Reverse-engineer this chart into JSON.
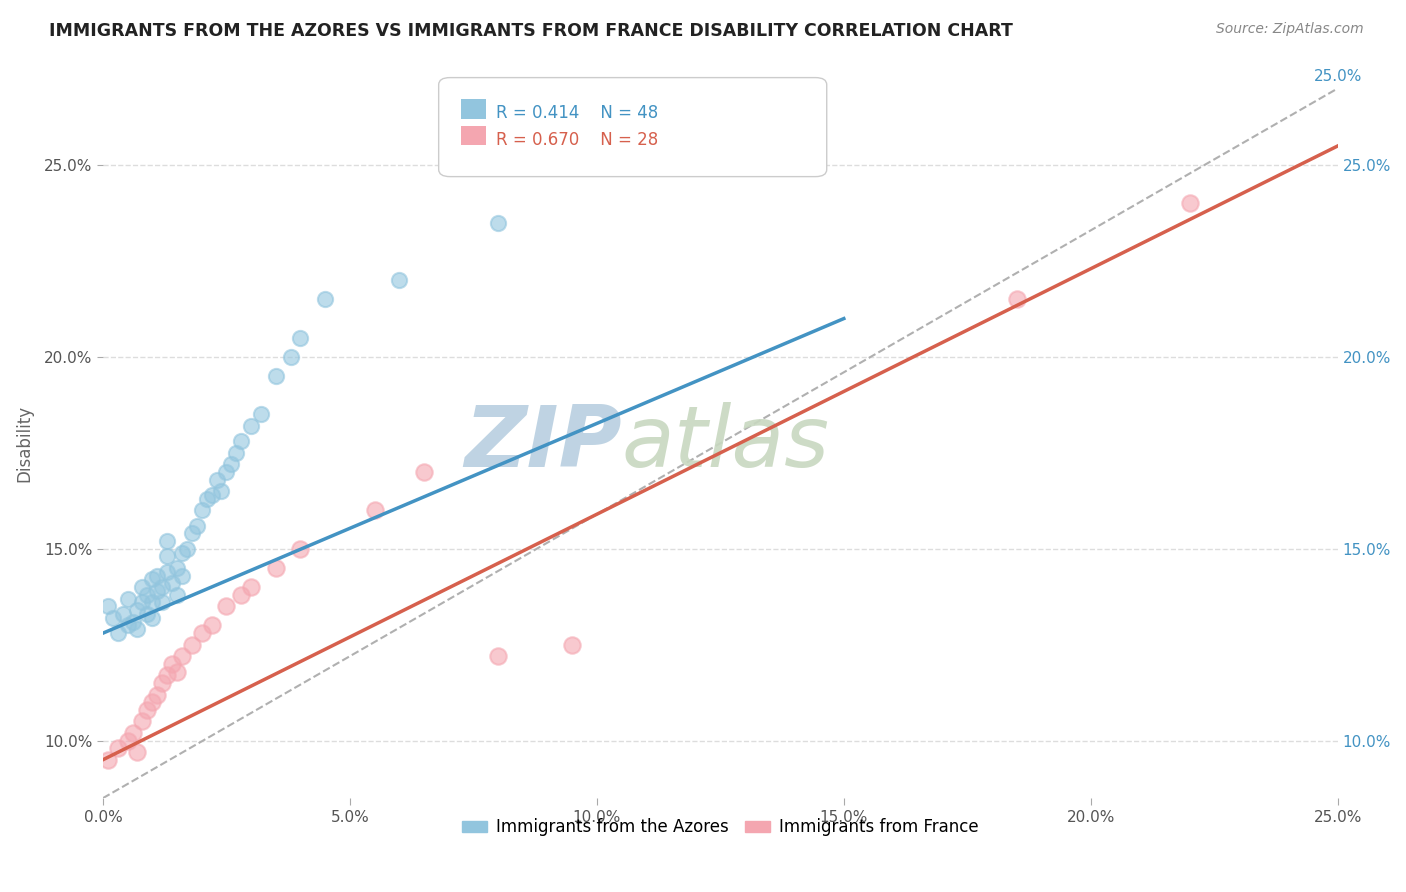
{
  "title": "IMMIGRANTS FROM THE AZORES VS IMMIGRANTS FROM FRANCE DISABILITY CORRELATION CHART",
  "source_text": "Source: ZipAtlas.com",
  "ylabel": "Disability",
  "xlim": [
    0.0,
    0.25
  ],
  "ylim": [
    0.085,
    0.27
  ],
  "xtick_values": [
    0.0,
    0.05,
    0.1,
    0.15,
    0.2,
    0.25
  ],
  "ytick_values": [
    0.1,
    0.15,
    0.2,
    0.25
  ],
  "legend_r1": "R = 0.414",
  "legend_n1": "N = 48",
  "legend_r2": "R = 0.670",
  "legend_n2": "N = 28",
  "legend_label1": "Immigrants from the Azores",
  "legend_label2": "Immigrants from France",
  "blue_color": "#92c5de",
  "pink_color": "#f4a6b0",
  "blue_line_color": "#4393c3",
  "pink_line_color": "#d6604d",
  "gray_dash_color": "#b0b0b0",
  "watermark_zip": "ZIP",
  "watermark_atlas": "atlas",
  "watermark_color": "#c8d8e8",
  "blue_scatter_x": [
    0.001,
    0.002,
    0.003,
    0.004,
    0.005,
    0.005,
    0.006,
    0.007,
    0.007,
    0.008,
    0.008,
    0.009,
    0.009,
    0.01,
    0.01,
    0.01,
    0.011,
    0.011,
    0.012,
    0.012,
    0.013,
    0.013,
    0.013,
    0.014,
    0.015,
    0.015,
    0.016,
    0.016,
    0.017,
    0.018,
    0.019,
    0.02,
    0.021,
    0.022,
    0.023,
    0.024,
    0.025,
    0.026,
    0.027,
    0.028,
    0.03,
    0.032,
    0.035,
    0.038,
    0.04,
    0.045,
    0.06,
    0.08
  ],
  "blue_scatter_y": [
    0.135,
    0.132,
    0.128,
    0.133,
    0.13,
    0.137,
    0.131,
    0.134,
    0.129,
    0.136,
    0.14,
    0.133,
    0.138,
    0.132,
    0.136,
    0.142,
    0.139,
    0.143,
    0.136,
    0.14,
    0.144,
    0.148,
    0.152,
    0.141,
    0.138,
    0.145,
    0.143,
    0.149,
    0.15,
    0.154,
    0.156,
    0.16,
    0.163,
    0.164,
    0.168,
    0.165,
    0.17,
    0.172,
    0.175,
    0.178,
    0.182,
    0.185,
    0.195,
    0.2,
    0.205,
    0.215,
    0.22,
    0.235
  ],
  "pink_scatter_x": [
    0.001,
    0.003,
    0.005,
    0.006,
    0.007,
    0.008,
    0.009,
    0.01,
    0.011,
    0.012,
    0.013,
    0.014,
    0.015,
    0.016,
    0.018,
    0.02,
    0.022,
    0.025,
    0.028,
    0.03,
    0.035,
    0.04,
    0.055,
    0.065,
    0.08,
    0.095,
    0.185,
    0.22
  ],
  "pink_scatter_y": [
    0.095,
    0.098,
    0.1,
    0.102,
    0.097,
    0.105,
    0.108,
    0.11,
    0.112,
    0.115,
    0.117,
    0.12,
    0.118,
    0.122,
    0.125,
    0.128,
    0.13,
    0.135,
    0.138,
    0.14,
    0.145,
    0.15,
    0.16,
    0.17,
    0.122,
    0.125,
    0.215,
    0.24
  ],
  "blue_line_x": [
    0.0,
    0.15
  ],
  "blue_line_y": [
    0.128,
    0.21
  ],
  "pink_line_x": [
    0.0,
    0.25
  ],
  "pink_line_y": [
    0.095,
    0.255
  ],
  "gray_line_x": [
    0.0,
    0.25
  ],
  "gray_line_y": [
    0.085,
    0.27
  ],
  "background_color": "#ffffff",
  "grid_color": "#dddddd"
}
